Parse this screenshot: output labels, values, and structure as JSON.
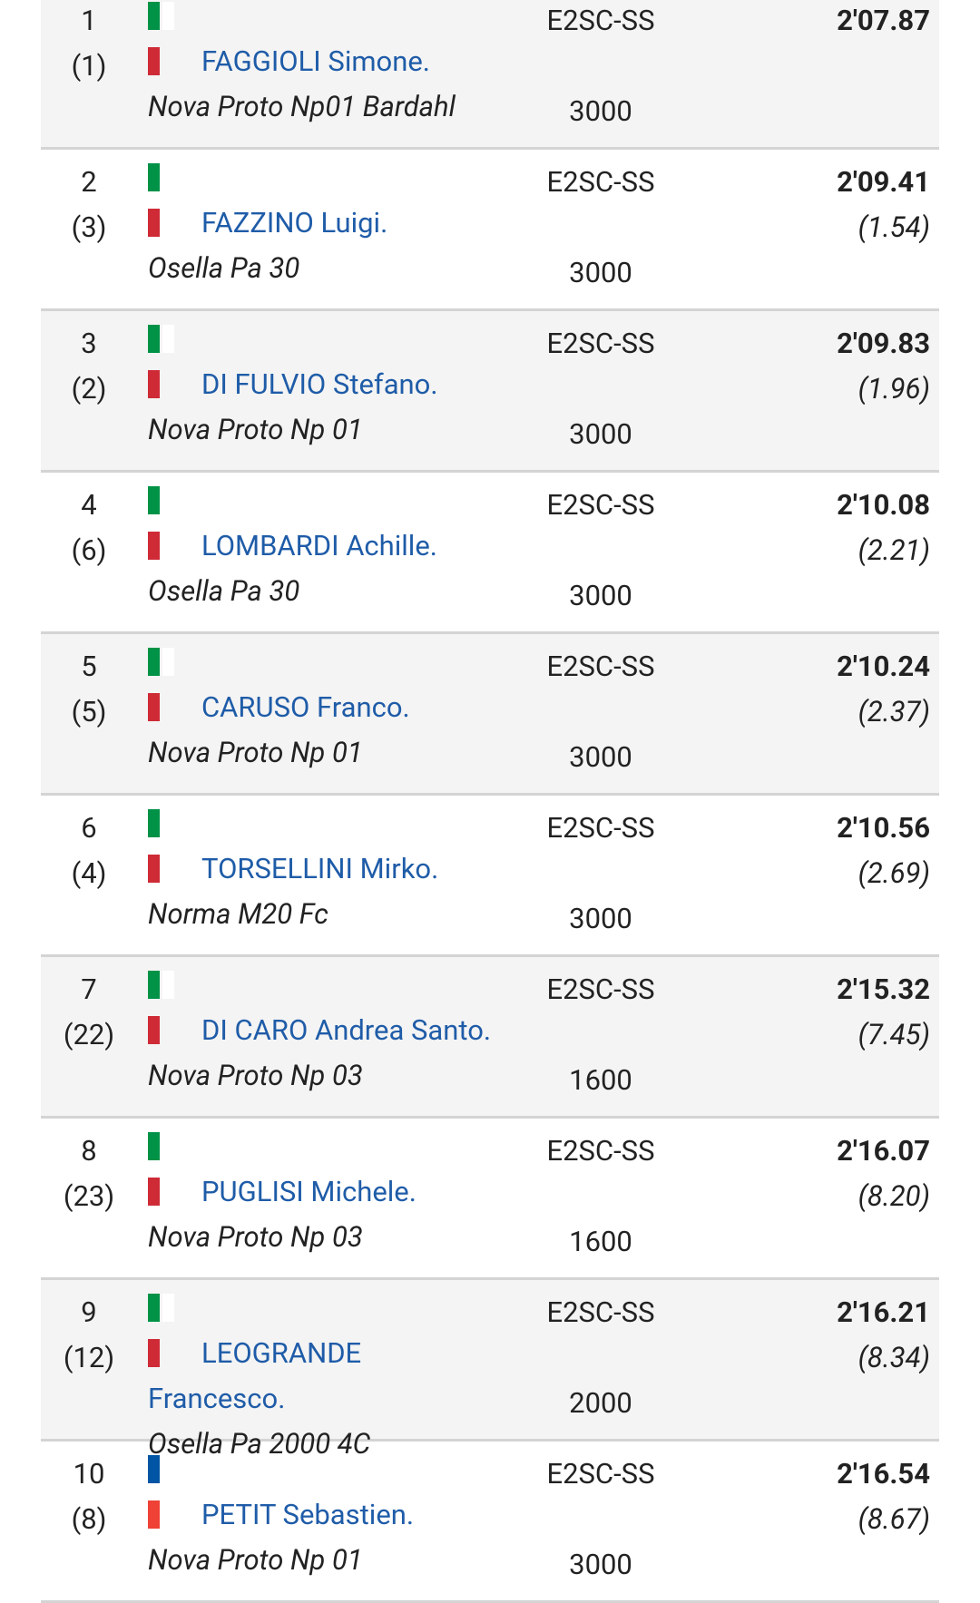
{
  "results": {
    "rows": [
      {
        "pos": "1",
        "start": "(1)",
        "flag_colors": [
          "#009246",
          "#ffffff",
          "#ce2b37"
        ],
        "driver": "FAGGIOLI Simone.",
        "car": "Nova Proto Np01 Bardahl",
        "class": "E2SC-SS",
        "cc": "3000",
        "time": "2'07.87"
      },
      {
        "pos": "2",
        "start": "(3)",
        "flag_colors": [
          "#009246",
          "#ffffff",
          "#ce2b37"
        ],
        "driver": "FAZZINO Luigi.",
        "car": "Osella Pa 30",
        "class": "E2SC-SS",
        "cc": "3000",
        "time": "2'09.41",
        "gap": "(1.54)"
      },
      {
        "pos": "3",
        "start": "(2)",
        "flag_colors": [
          "#009246",
          "#ffffff",
          "#ce2b37"
        ],
        "driver": "DI FULVIO Stefano.",
        "car": "Nova Proto Np 01",
        "class": "E2SC-SS",
        "cc": "3000",
        "time": "2'09.83",
        "gap": "(1.96)"
      },
      {
        "pos": "4",
        "start": "(6)",
        "flag_colors": [
          "#009246",
          "#ffffff",
          "#ce2b37"
        ],
        "driver": "LOMBARDI Achille.",
        "car": "Osella Pa 30",
        "class": "E2SC-SS",
        "cc": "3000",
        "time": "2'10.08",
        "gap": "(2.21)"
      },
      {
        "pos": "5",
        "start": "(5)",
        "flag_colors": [
          "#009246",
          "#ffffff",
          "#ce2b37"
        ],
        "driver": "CARUSO Franco.",
        "car": "Nova Proto Np 01",
        "class": "E2SC-SS",
        "cc": "3000",
        "time": "2'10.24",
        "gap": "(2.37)"
      },
      {
        "pos": "6",
        "start": "(4)",
        "flag_colors": [
          "#009246",
          "#ffffff",
          "#ce2b37"
        ],
        "driver": "TORSELLINI Mirko.",
        "car": "Norma M20 Fc",
        "class": "E2SC-SS",
        "cc": "3000",
        "time": "2'10.56",
        "gap": "(2.69)"
      },
      {
        "pos": "7",
        "start": "(22)",
        "flag_colors": [
          "#009246",
          "#ffffff",
          "#ce2b37"
        ],
        "driver": "DI CARO Andrea Santo.",
        "car": "Nova Proto Np 03",
        "class": "E2SC-SS",
        "cc": "1600",
        "time": "2'15.32",
        "gap": "(7.45)"
      },
      {
        "pos": "8",
        "start": "(23)",
        "flag_colors": [
          "#009246",
          "#ffffff",
          "#ce2b37"
        ],
        "driver": "PUGLISI Michele.",
        "car": "Nova Proto Np 03",
        "class": "E2SC-SS",
        "cc": "1600",
        "time": "2'16.07",
        "gap": "(8.20)"
      },
      {
        "pos": "9",
        "start": "(12)",
        "flag_colors": [
          "#009246",
          "#ffffff",
          "#ce2b37"
        ],
        "driver": "LEOGRANDE Francesco.",
        "car": "Osella Pa 2000 4C",
        "class": "E2SC-SS",
        "cc": "2000",
        "time": "2'16.21",
        "gap": "(8.34)"
      },
      {
        "pos": "10",
        "start": "(8)",
        "flag_colors": [
          "#0055a4",
          "#ffffff",
          "#ef4135"
        ],
        "driver": "PETIT Sebastien.",
        "car": "Nova Proto Np 01",
        "class": "E2SC-SS",
        "cc": "3000",
        "time": "2'16.54",
        "gap": "(8.67)"
      }
    ]
  }
}
